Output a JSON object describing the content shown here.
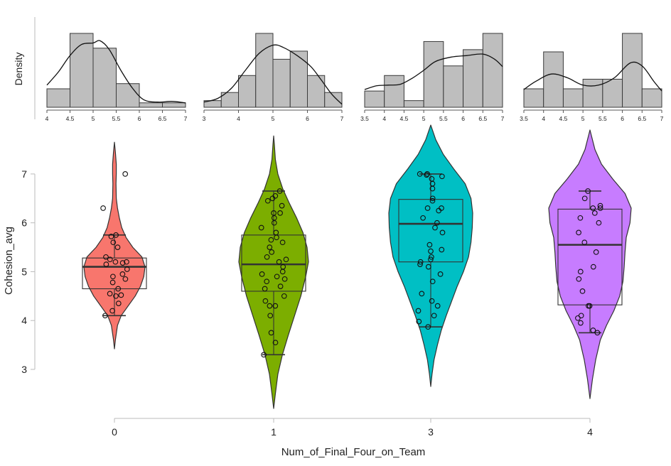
{
  "chart_data": {
    "type": "violin",
    "xlabel": "Num_of_Final_Four_on_Team",
    "ylabel": "Cohesion_avg",
    "density_label": "Density",
    "ylim": [
      2.2,
      7.9
    ],
    "yticks": [
      3,
      4,
      5,
      6,
      7
    ],
    "categories": [
      "0",
      "1",
      "3",
      "4"
    ],
    "groups": [
      {
        "name": "0",
        "color": "#f8766d",
        "violin": {
          "min": 3.42,
          "max": 7.65,
          "max_halfwidth": 0.43,
          "profile": [
            [
              3.42,
              0.0
            ],
            [
              3.6,
              0.03
            ],
            [
              3.9,
              0.1
            ],
            [
              4.1,
              0.22
            ],
            [
              4.3,
              0.45
            ],
            [
              4.5,
              0.68
            ],
            [
              4.7,
              0.85
            ],
            [
              4.9,
              0.96
            ],
            [
              5.1,
              1.0
            ],
            [
              5.3,
              0.9
            ],
            [
              5.5,
              0.6
            ],
            [
              5.7,
              0.38
            ],
            [
              5.9,
              0.24
            ],
            [
              6.1,
              0.16
            ],
            [
              6.3,
              0.1
            ],
            [
              6.5,
              0.06
            ],
            [
              6.8,
              0.05
            ],
            [
              7.0,
              0.06
            ],
            [
              7.2,
              0.06
            ],
            [
              7.45,
              0.03
            ],
            [
              7.65,
              0.0
            ]
          ]
        },
        "box": {
          "q1": 4.65,
          "median": 5.1,
          "q3": 5.28,
          "whisker_low": 4.1,
          "whisker_high": 5.75
        },
        "points": [
          7.0,
          6.3,
          5.75,
          5.72,
          5.6,
          5.5,
          5.3,
          5.25,
          5.2,
          5.2,
          5.18,
          5.15,
          5.05,
          4.95,
          4.9,
          4.85,
          4.78,
          4.65,
          4.55,
          4.52,
          4.5,
          4.35,
          4.2,
          4.1
        ]
      },
      {
        "name": "1",
        "color": "#7cae00",
        "violin": {
          "min": 2.2,
          "max": 7.78,
          "max_halfwidth": 0.49,
          "profile": [
            [
              2.2,
              0.0
            ],
            [
              2.5,
              0.05
            ],
            [
              2.9,
              0.12
            ],
            [
              3.3,
              0.25
            ],
            [
              3.7,
              0.42
            ],
            [
              4.1,
              0.6
            ],
            [
              4.5,
              0.78
            ],
            [
              4.9,
              0.92
            ],
            [
              5.2,
              1.0
            ],
            [
              5.5,
              0.96
            ],
            [
              5.8,
              0.84
            ],
            [
              6.1,
              0.66
            ],
            [
              6.4,
              0.45
            ],
            [
              6.7,
              0.26
            ],
            [
              7.0,
              0.12
            ],
            [
              7.3,
              0.05
            ],
            [
              7.6,
              0.02
            ],
            [
              7.78,
              0.0
            ]
          ]
        },
        "box": {
          "q1": 4.6,
          "median": 5.15,
          "q3": 5.75,
          "whisker_low": 3.3,
          "whisker_high": 6.65
        },
        "points": [
          6.65,
          6.55,
          6.5,
          6.45,
          6.35,
          6.2,
          6.2,
          6.1,
          6.0,
          5.9,
          5.8,
          5.7,
          5.65,
          5.6,
          5.5,
          5.4,
          5.3,
          5.25,
          5.2,
          5.1,
          5.0,
          4.95,
          4.9,
          4.85,
          4.8,
          4.7,
          4.65,
          4.5,
          4.4,
          4.3,
          4.3,
          4.1,
          3.75,
          3.55,
          3.3
        ]
      },
      {
        "name": "3",
        "color": "#00bfc4",
        "violin": {
          "min": 2.65,
          "max": 8.0,
          "max_halfwidth": 0.59,
          "profile": [
            [
              2.65,
              0.0
            ],
            [
              2.9,
              0.03
            ],
            [
              3.2,
              0.08
            ],
            [
              3.5,
              0.16
            ],
            [
              3.8,
              0.25
            ],
            [
              4.1,
              0.37
            ],
            [
              4.4,
              0.5
            ],
            [
              4.7,
              0.63
            ],
            [
              5.0,
              0.78
            ],
            [
              5.3,
              0.9
            ],
            [
              5.6,
              0.96
            ],
            [
              5.9,
              0.99
            ],
            [
              6.2,
              1.0
            ],
            [
              6.5,
              0.96
            ],
            [
              6.8,
              0.82
            ],
            [
              7.1,
              0.55
            ],
            [
              7.4,
              0.3
            ],
            [
              7.7,
              0.12
            ],
            [
              8.0,
              0.0
            ]
          ]
        },
        "box": {
          "q1": 5.2,
          "median": 5.98,
          "q3": 6.48,
          "whisker_low": 3.87,
          "whisker_high": 7.0
        },
        "points": [
          7.0,
          7.0,
          6.98,
          6.95,
          6.9,
          6.8,
          6.7,
          6.5,
          6.45,
          6.3,
          6.3,
          6.25,
          6.1,
          6.0,
          5.9,
          5.8,
          5.55,
          5.45,
          5.42,
          5.3,
          5.25,
          5.2,
          5.15,
          5.1,
          4.95,
          4.8,
          4.55,
          4.4,
          4.3,
          4.2,
          4.1,
          3.98,
          3.87
        ]
      },
      {
        "name": "4",
        "color": "#c77cff",
        "violin": {
          "min": 2.4,
          "max": 7.9,
          "max_halfwidth": 0.58,
          "profile": [
            [
              2.4,
              0.0
            ],
            [
              2.8,
              0.06
            ],
            [
              3.2,
              0.14
            ],
            [
              3.6,
              0.25
            ],
            [
              3.9,
              0.4
            ],
            [
              4.2,
              0.58
            ],
            [
              4.5,
              0.72
            ],
            [
              4.8,
              0.8
            ],
            [
              5.1,
              0.83
            ],
            [
              5.4,
              0.85
            ],
            [
              5.7,
              0.88
            ],
            [
              6.0,
              0.97
            ],
            [
              6.3,
              1.0
            ],
            [
              6.6,
              0.85
            ],
            [
              6.9,
              0.55
            ],
            [
              7.2,
              0.28
            ],
            [
              7.5,
              0.12
            ],
            [
              7.9,
              0.0
            ]
          ]
        },
        "box": {
          "q1": 4.32,
          "median": 5.55,
          "q3": 6.28,
          "whisker_low": 3.75,
          "whisker_high": 6.65
        },
        "points": [
          6.65,
          6.5,
          6.35,
          6.3,
          6.3,
          6.2,
          6.1,
          6.0,
          5.8,
          5.6,
          5.4,
          5.1,
          5.0,
          4.85,
          4.6,
          4.3,
          4.3,
          4.1,
          4.05,
          3.95,
          3.8,
          3.75
        ]
      }
    ],
    "histograms": [
      {
        "group": "0",
        "range": [
          4,
          7
        ],
        "ticks": [
          "4",
          "4.5",
          "5",
          "5.5",
          "6",
          "6.5",
          "7"
        ],
        "bins": [
          [
            4,
            4.5,
            0.25
          ],
          [
            4.5,
            5.0,
            1.0
          ],
          [
            5.0,
            5.5,
            0.8
          ],
          [
            5.5,
            6.0,
            0.32
          ],
          [
            6.0,
            6.5,
            0.06
          ],
          [
            6.5,
            7.0,
            0.06
          ]
        ],
        "curve": [
          [
            4.0,
            0.3
          ],
          [
            4.25,
            0.48
          ],
          [
            4.5,
            0.7
          ],
          [
            4.75,
            0.85
          ],
          [
            5.0,
            0.87
          ],
          [
            5.15,
            0.9
          ],
          [
            5.35,
            0.78
          ],
          [
            5.6,
            0.5
          ],
          [
            5.85,
            0.26
          ],
          [
            6.1,
            0.1
          ],
          [
            6.4,
            0.07
          ],
          [
            6.7,
            0.08
          ],
          [
            7.0,
            0.06
          ]
        ]
      },
      {
        "group": "1",
        "range": [
          3,
          7
        ],
        "ticks": [
          "3",
          "4",
          "5",
          "6",
          "7"
        ],
        "bins": [
          [
            3.0,
            3.5,
            0.09
          ],
          [
            3.5,
            4.0,
            0.2
          ],
          [
            4.0,
            4.5,
            0.43
          ],
          [
            4.5,
            5.0,
            1.0
          ],
          [
            5.0,
            5.5,
            0.65
          ],
          [
            5.5,
            6.0,
            0.76
          ],
          [
            6.0,
            6.5,
            0.43
          ],
          [
            6.5,
            7.0,
            0.2
          ]
        ],
        "curve": [
          [
            3.0,
            0.07
          ],
          [
            3.4,
            0.12
          ],
          [
            3.8,
            0.26
          ],
          [
            4.2,
            0.5
          ],
          [
            4.6,
            0.73
          ],
          [
            5.0,
            0.84
          ],
          [
            5.3,
            0.81
          ],
          [
            5.7,
            0.7
          ],
          [
            6.1,
            0.55
          ],
          [
            6.4,
            0.37
          ],
          [
            6.7,
            0.18
          ],
          [
            7.0,
            0.04
          ]
        ]
      },
      {
        "group": "3",
        "range": [
          3.5,
          7
        ],
        "ticks": [
          "3.5",
          "4",
          "4.5",
          "5",
          "5.5",
          "6",
          "6.5",
          "7"
        ],
        "bins": [
          [
            3.5,
            4.0,
            0.22
          ],
          [
            4.0,
            4.5,
            0.43
          ],
          [
            4.5,
            5.0,
            0.09
          ],
          [
            5.0,
            5.5,
            0.89
          ],
          [
            5.5,
            6.0,
            0.56
          ],
          [
            6.0,
            6.5,
            0.78
          ],
          [
            6.5,
            7.0,
            1.0
          ]
        ],
        "curve": [
          [
            3.5,
            0.24
          ],
          [
            3.8,
            0.29
          ],
          [
            4.1,
            0.3
          ],
          [
            4.4,
            0.31
          ],
          [
            4.7,
            0.39
          ],
          [
            5.0,
            0.5
          ],
          [
            5.3,
            0.62
          ],
          [
            5.7,
            0.68
          ],
          [
            6.1,
            0.7
          ],
          [
            6.5,
            0.72
          ],
          [
            6.8,
            0.65
          ],
          [
            7.0,
            0.55
          ]
        ]
      },
      {
        "group": "4",
        "range": [
          3.5,
          7
        ],
        "ticks": [
          "3.5",
          "4",
          "4.5",
          "5",
          "5.5",
          "6",
          "6.5",
          "7"
        ],
        "bins": [
          [
            3.5,
            4.0,
            0.25
          ],
          [
            4.0,
            4.5,
            0.75
          ],
          [
            4.5,
            5.0,
            0.25
          ],
          [
            5.0,
            5.5,
            0.38
          ],
          [
            5.5,
            6.0,
            0.38
          ],
          [
            6.0,
            6.5,
            1.0
          ],
          [
            6.5,
            7.0,
            0.25
          ]
        ],
        "curve": [
          [
            3.5,
            0.24
          ],
          [
            3.8,
            0.35
          ],
          [
            4.2,
            0.45
          ],
          [
            4.6,
            0.4
          ],
          [
            5.0,
            0.3
          ],
          [
            5.4,
            0.3
          ],
          [
            5.8,
            0.4
          ],
          [
            6.2,
            0.6
          ],
          [
            6.5,
            0.56
          ],
          [
            6.8,
            0.35
          ],
          [
            7.0,
            0.22
          ]
        ]
      }
    ]
  }
}
